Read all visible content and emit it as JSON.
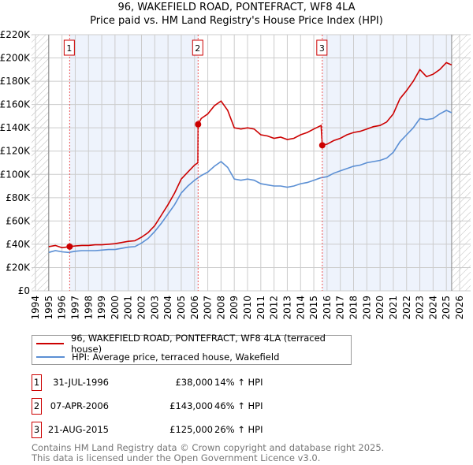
{
  "title": "96, WAKEFIELD ROAD, PONTEFRACT, WF8 4LA",
  "subtitle": "Price paid vs. HM Land Registry's House Price Index (HPI)",
  "colors": {
    "property": "#cc0000",
    "hpi": "#5b8fd4",
    "shade": "#eef3fc",
    "grid": "#cccccc"
  },
  "chart_data": {
    "type": "line",
    "title": "96, WAKEFIELD ROAD, PONTEFRACT, WF8 4LA — Price paid vs. HM Land Registry's House Price Index (HPI)",
    "xlim": [
      1994,
      2026
    ],
    "ylim": [
      0,
      220000
    ],
    "x_ticks": [
      "1994",
      "1995",
      "1996",
      "1997",
      "1998",
      "1999",
      "2000",
      "2001",
      "2002",
      "2003",
      "2004",
      "2005",
      "2006",
      "2007",
      "2008",
      "2009",
      "2010",
      "2011",
      "2012",
      "2013",
      "2014",
      "2015",
      "2016",
      "2017",
      "2018",
      "2019",
      "2020",
      "2021",
      "2022",
      "2023",
      "2024",
      "2025",
      "2026"
    ],
    "y_ticks": [
      {
        "v": 0,
        "label": "£0"
      },
      {
        "v": 20000,
        "label": "£20K"
      },
      {
        "v": 40000,
        "label": "£40K"
      },
      {
        "v": 60000,
        "label": "£60K"
      },
      {
        "v": 80000,
        "label": "£80K"
      },
      {
        "v": 100000,
        "label": "£100K"
      },
      {
        "v": 120000,
        "label": "£120K"
      },
      {
        "v": 140000,
        "label": "£140K"
      },
      {
        "v": 160000,
        "label": "£160K"
      },
      {
        "v": 180000,
        "label": "£180K"
      },
      {
        "v": 200000,
        "label": "£200K"
      },
      {
        "v": 220000,
        "label": "£220K"
      }
    ],
    "grid": true,
    "data_range": [
      1995,
      2025.4
    ],
    "series": [
      {
        "name": "96, WAKEFIELD ROAD, PONTEFRACT, WF8 4LA (terraced house)",
        "color": "#cc0000",
        "x": [
          1995,
          1995.5,
          1996,
          1996.58,
          1997,
          1997.5,
          1998,
          1998.5,
          1999,
          1999.5,
          2000,
          2000.5,
          2001,
          2001.5,
          2002,
          2002.5,
          2003,
          2003.5,
          2004,
          2004.5,
          2005,
          2005.5,
          2006,
          2006.25,
          2006.27,
          2006.5,
          2007,
          2007.5,
          2008,
          2008.5,
          2009,
          2009.5,
          2010,
          2010.5,
          2011,
          2011.5,
          2012,
          2012.5,
          2013,
          2013.5,
          2014,
          2014.5,
          2015,
          2015.55,
          2015.64,
          2016,
          2016.5,
          2017,
          2017.5,
          2018,
          2018.5,
          2019,
          2019.5,
          2020,
          2020.5,
          2021,
          2021.5,
          2022,
          2022.5,
          2023,
          2023.5,
          2024,
          2024.5,
          2025,
          2025.4
        ],
        "y": [
          38000,
          39000,
          37000,
          38000,
          38500,
          39000,
          39000,
          39500,
          39500,
          40000,
          40500,
          41500,
          42500,
          43000,
          46000,
          50000,
          56000,
          65000,
          74000,
          84000,
          96000,
          102000,
          108000,
          110000,
          143000,
          148000,
          152000,
          159000,
          163000,
          155000,
          140000,
          139000,
          140000,
          139000,
          134000,
          133000,
          131000,
          132000,
          130000,
          131000,
          134000,
          136000,
          139000,
          142000,
          125000,
          126000,
          129000,
          131000,
          134000,
          136000,
          137000,
          139000,
          141000,
          142000,
          145000,
          152000,
          165000,
          172000,
          180000,
          190000,
          184000,
          186000,
          190000,
          196000,
          194000
        ]
      },
      {
        "name": "HPI: Average price, terraced house, Wakefield",
        "color": "#5b8fd4",
        "x": [
          1995,
          1995.5,
          1996,
          1996.5,
          1997,
          1997.5,
          1998,
          1998.5,
          1999,
          1999.5,
          2000,
          2000.5,
          2001,
          2001.5,
          2002,
          2002.5,
          2003,
          2003.5,
          2004,
          2004.5,
          2005,
          2005.5,
          2006,
          2006.5,
          2007,
          2007.5,
          2008,
          2008.5,
          2009,
          2009.5,
          2010,
          2010.5,
          2011,
          2011.5,
          2012,
          2012.5,
          2013,
          2013.5,
          2014,
          2014.5,
          2015,
          2015.5,
          2016,
          2016.5,
          2017,
          2017.5,
          2018,
          2018.5,
          2019,
          2019.5,
          2020,
          2020.5,
          2021,
          2021.5,
          2022,
          2022.5,
          2023,
          2023.5,
          2024,
          2024.5,
          2025,
          2025.4
        ],
        "y": [
          33000,
          34500,
          33500,
          33000,
          34000,
          34500,
          34500,
          34500,
          35000,
          35500,
          35500,
          36500,
          37500,
          38000,
          41000,
          45000,
          51000,
          58000,
          66000,
          74000,
          84000,
          90000,
          95000,
          99000,
          102000,
          107000,
          111000,
          106000,
          96000,
          95000,
          96000,
          95000,
          92000,
          91000,
          90000,
          90000,
          89000,
          90000,
          92000,
          93000,
          95000,
          97000,
          98000,
          101000,
          103000,
          105000,
          107000,
          108000,
          110000,
          111000,
          112000,
          114000,
          119000,
          128000,
          134000,
          140000,
          148000,
          147000,
          148000,
          152000,
          155000,
          153000
        ]
      }
    ],
    "shaded_ranges": [
      [
        1996.58,
        2006.27
      ],
      [
        2015.64,
        2025.4
      ]
    ],
    "annotations": [
      {
        "label": "1",
        "x": 1996.58,
        "y": 38000
      },
      {
        "label": "2",
        "x": 2006.27,
        "y": 143000
      },
      {
        "label": "3",
        "x": 2015.64,
        "y": 125000
      }
    ],
    "legend_position": "below"
  },
  "legend": [
    {
      "label": "96, WAKEFIELD ROAD, PONTEFRACT, WF8 4LA (terraced house)"
    },
    {
      "label": "HPI: Average price, terraced house, Wakefield"
    }
  ],
  "sales": [
    {
      "num": "1",
      "date": "31-JUL-1996",
      "price": "£38,000",
      "hpi": "14% ↑ HPI"
    },
    {
      "num": "2",
      "date": "07-APR-2006",
      "price": "£143,000",
      "hpi": "46% ↑ HPI"
    },
    {
      "num": "3",
      "date": "21-AUG-2015",
      "price": "£125,000",
      "hpi": "26% ↑ HPI"
    }
  ],
  "footer": {
    "line1": "Contains HM Land Registry data © Crown copyright and database right 2025.",
    "line2": "This data is licensed under the Open Government Licence v3.0."
  }
}
